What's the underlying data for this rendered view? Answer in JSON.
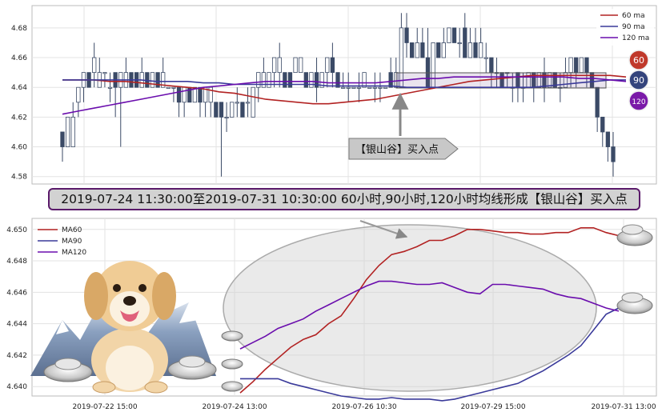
{
  "banner_text": "2019-07-24 11:30:00至2019-07-31 10:30:00 60小时,90小时,120小时均线形成【银山谷】买入点",
  "callout_text": "【银山谷】买入点",
  "badges": [
    {
      "label": "60",
      "color": "#c0392b"
    },
    {
      "label": "90",
      "color": "#34447c"
    },
    {
      "label": "120",
      "color": "#7a1aa8"
    }
  ],
  "colors": {
    "ma60": "#b22222",
    "ma90": "#3a3a9a",
    "ma120": "#6a0dad",
    "candle": "#3b4a66",
    "grid": "#dddddd"
  },
  "chart_data": [
    {
      "type": "candlestick",
      "legend": [
        {
          "label": "60 ma",
          "color": "#b22222"
        },
        {
          "label": "90 ma",
          "color": "#3a3a9a"
        },
        {
          "label": "120 ma",
          "color": "#6a0dad"
        }
      ],
      "yticks": [
        4.58,
        4.6,
        4.62,
        4.64,
        4.66,
        4.68
      ],
      "ylim": [
        4.575,
        4.695
      ],
      "candles": [
        [
          4.61,
          4.6,
          4.59,
          4.61
        ],
        [
          4.6,
          4.62,
          4.6,
          4.62
        ],
        [
          4.6,
          4.62,
          4.6,
          4.63
        ],
        [
          4.63,
          4.64,
          4.62,
          4.64
        ],
        [
          4.64,
          4.65,
          4.63,
          4.65
        ],
        [
          4.65,
          4.64,
          4.64,
          4.65
        ],
        [
          4.65,
          4.66,
          4.64,
          4.67
        ],
        [
          4.64,
          4.65,
          4.64,
          4.66
        ],
        [
          4.65,
          4.65,
          4.64,
          4.65
        ],
        [
          4.64,
          4.64,
          4.63,
          4.65
        ],
        [
          4.65,
          4.64,
          4.62,
          4.65
        ],
        [
          4.64,
          4.65,
          4.6,
          4.65
        ],
        [
          4.64,
          4.65,
          4.64,
          4.66
        ],
        [
          4.65,
          4.64,
          4.64,
          4.65
        ],
        [
          4.65,
          4.64,
          4.64,
          4.65
        ],
        [
          4.64,
          4.65,
          4.64,
          4.66
        ],
        [
          4.65,
          4.64,
          4.64,
          4.65
        ],
        [
          4.64,
          4.65,
          4.64,
          4.65
        ],
        [
          4.65,
          4.64,
          4.64,
          4.65
        ],
        [
          4.64,
          4.65,
          4.64,
          4.66
        ],
        [
          4.64,
          4.64,
          4.64,
          4.64
        ],
        [
          4.64,
          4.64,
          4.63,
          4.64
        ],
        [
          4.64,
          4.63,
          4.62,
          4.64
        ],
        [
          4.63,
          4.64,
          4.62,
          4.64
        ],
        [
          4.64,
          4.63,
          4.63,
          4.64
        ],
        [
          4.63,
          4.64,
          4.63,
          4.64
        ],
        [
          4.64,
          4.63,
          4.62,
          4.64
        ],
        [
          4.63,
          4.64,
          4.62,
          4.64
        ],
        [
          4.63,
          4.64,
          4.62,
          4.64
        ],
        [
          4.63,
          4.62,
          4.62,
          4.63
        ],
        [
          4.63,
          4.62,
          4.58,
          4.63
        ],
        [
          4.62,
          4.62,
          4.61,
          4.63
        ],
        [
          4.62,
          4.63,
          4.62,
          4.63
        ],
        [
          4.63,
          4.63,
          4.62,
          4.64
        ],
        [
          4.63,
          4.62,
          4.62,
          4.63
        ],
        [
          4.63,
          4.63,
          4.62,
          4.64
        ],
        [
          4.62,
          4.64,
          4.62,
          4.64
        ],
        [
          4.64,
          4.65,
          4.63,
          4.65
        ],
        [
          4.64,
          4.65,
          4.64,
          4.66
        ],
        [
          4.64,
          4.65,
          4.64,
          4.65
        ],
        [
          4.65,
          4.66,
          4.64,
          4.66
        ],
        [
          4.65,
          4.66,
          4.64,
          4.67
        ],
        [
          4.65,
          4.64,
          4.64,
          4.65
        ],
        [
          4.65,
          4.64,
          4.64,
          4.65
        ],
        [
          4.65,
          4.66,
          4.65,
          4.66
        ],
        [
          4.65,
          4.66,
          4.65,
          4.66
        ],
        [
          4.65,
          4.64,
          4.64,
          4.65
        ],
        [
          4.64,
          4.65,
          4.64,
          4.65
        ],
        [
          4.65,
          4.64,
          4.63,
          4.66
        ],
        [
          4.64,
          4.65,
          4.64,
          4.65
        ],
        [
          4.65,
          4.66,
          4.64,
          4.66
        ],
        [
          4.66,
          4.65,
          4.64,
          4.67
        ],
        [
          4.65,
          4.64,
          4.64,
          4.65
        ],
        [
          4.64,
          4.64,
          4.64,
          4.65
        ],
        [
          4.64,
          4.64,
          4.63,
          4.65
        ],
        [
          4.64,
          4.64,
          4.64,
          4.64
        ],
        [
          4.64,
          4.64,
          4.63,
          4.65
        ],
        [
          4.64,
          4.65,
          4.64,
          4.65
        ],
        [
          4.64,
          4.64,
          4.64,
          4.64
        ],
        [
          4.64,
          4.64,
          4.63,
          4.65
        ],
        [
          4.64,
          4.64,
          4.63,
          4.65
        ],
        [
          4.64,
          4.64,
          4.64,
          4.64
        ],
        [
          4.65,
          4.64,
          4.64,
          4.66
        ],
        [
          4.64,
          4.65,
          4.64,
          4.66
        ],
        [
          4.64,
          4.68,
          4.64,
          4.69
        ],
        [
          4.68,
          4.67,
          4.66,
          4.69
        ],
        [
          4.67,
          4.66,
          4.66,
          4.67
        ],
        [
          4.66,
          4.67,
          4.66,
          4.68
        ],
        [
          4.67,
          4.66,
          4.66,
          4.68
        ],
        [
          4.66,
          4.64,
          4.64,
          4.68
        ],
        [
          4.64,
          4.67,
          4.64,
          4.67
        ],
        [
          4.67,
          4.66,
          4.66,
          4.67
        ],
        [
          4.66,
          4.67,
          4.66,
          4.68
        ],
        [
          4.67,
          4.68,
          4.67,
          4.68
        ],
        [
          4.68,
          4.67,
          4.67,
          4.68
        ],
        [
          4.67,
          4.67,
          4.66,
          4.68
        ],
        [
          4.68,
          4.66,
          4.66,
          4.69
        ],
        [
          4.66,
          4.67,
          4.66,
          4.68
        ],
        [
          4.67,
          4.66,
          4.66,
          4.68
        ],
        [
          4.66,
          4.67,
          4.66,
          4.68
        ],
        [
          4.66,
          4.66,
          4.65,
          4.67
        ],
        [
          4.66,
          4.65,
          4.64,
          4.66
        ],
        [
          4.65,
          4.65,
          4.64,
          4.66
        ],
        [
          4.65,
          4.64,
          4.64,
          4.65
        ],
        [
          4.65,
          4.65,
          4.64,
          4.65
        ],
        [
          4.64,
          4.64,
          4.63,
          4.65
        ],
        [
          4.65,
          4.64,
          4.63,
          4.65
        ],
        [
          4.64,
          4.64,
          4.63,
          4.65
        ],
        [
          4.64,
          4.65,
          4.64,
          4.65
        ],
        [
          4.65,
          4.64,
          4.63,
          4.65
        ],
        [
          4.64,
          4.65,
          4.64,
          4.65
        ],
        [
          4.65,
          4.64,
          4.63,
          4.66
        ],
        [
          4.64,
          4.65,
          4.64,
          4.65
        ],
        [
          4.65,
          4.64,
          4.64,
          4.65
        ],
        [
          4.64,
          4.64,
          4.63,
          4.65
        ],
        [
          4.64,
          4.65,
          4.64,
          4.66
        ],
        [
          4.65,
          4.66,
          4.64,
          4.66
        ],
        [
          4.66,
          4.65,
          4.64,
          4.66
        ],
        [
          4.65,
          4.66,
          4.65,
          4.66
        ],
        [
          4.66,
          4.65,
          4.64,
          4.66
        ],
        [
          4.65,
          4.64,
          4.64,
          4.65
        ],
        [
          4.64,
          4.62,
          4.61,
          4.64
        ],
        [
          4.62,
          4.61,
          4.6,
          4.62
        ],
        [
          4.61,
          4.6,
          4.59,
          4.61
        ],
        [
          4.6,
          4.59,
          4.58,
          4.61
        ]
      ],
      "ma60": [
        4.645,
        4.645,
        4.645,
        4.644,
        4.644,
        4.643,
        4.642,
        4.641,
        4.64,
        4.639,
        4.637,
        4.636,
        4.634,
        4.632,
        4.631,
        4.63,
        4.629,
        4.629,
        4.63,
        4.631,
        4.632,
        4.634,
        4.636,
        4.638,
        4.64,
        4.642,
        4.644,
        4.645,
        4.646,
        4.647,
        4.648,
        4.648,
        4.648,
        4.648,
        4.648,
        4.648,
        4.647
      ],
      "ma90": [
        4.645,
        4.645,
        4.645,
        4.645,
        4.645,
        4.645,
        4.644,
        4.644,
        4.644,
        4.643,
        4.643,
        4.642,
        4.642,
        4.642,
        4.642,
        4.642,
        4.642,
        4.641,
        4.641,
        4.641,
        4.641,
        4.641,
        4.64,
        4.64,
        4.64,
        4.64,
        4.64,
        4.64,
        4.64,
        4.64,
        4.64,
        4.641,
        4.642,
        4.643,
        4.644,
        4.645,
        4.645
      ],
      "ma120": [
        4.622,
        4.624,
        4.626,
        4.628,
        4.63,
        4.632,
        4.634,
        4.636,
        4.638,
        4.64,
        4.641,
        4.642,
        4.643,
        4.644,
        4.644,
        4.644,
        4.644,
        4.643,
        4.643,
        4.643,
        4.643,
        4.644,
        4.645,
        4.646,
        4.646,
        4.647,
        4.647,
        4.647,
        4.647,
        4.647,
        4.647,
        4.647,
        4.647,
        4.646,
        4.646,
        4.645,
        4.644
      ]
    },
    {
      "type": "line",
      "legend": [
        {
          "label": "MA60",
          "color": "#b22222"
        },
        {
          "label": "MA90",
          "color": "#3a3a9a"
        },
        {
          "label": "MA120",
          "color": "#6a0dad"
        }
      ],
      "xticks": [
        "2019-07-22 15:00",
        "2019-07-24 13:00",
        "2019-07-26 10:30",
        "2019-07-29 15:00",
        "2019-07-31 13:00"
      ],
      "yticks": [
        4.64,
        4.642,
        4.644,
        4.646,
        4.648,
        4.65
      ],
      "ylim": [
        4.6394,
        4.6507
      ],
      "series": [
        {
          "name": "MA60",
          "values": [
            4.6396,
            4.6403,
            4.6411,
            4.6418,
            4.6425,
            4.643,
            4.6433,
            4.644,
            4.6445,
            4.6456,
            4.6468,
            4.6477,
            4.6484,
            4.6486,
            4.6489,
            4.6493,
            4.6493,
            4.6496,
            4.65,
            4.65,
            4.6499,
            4.6498,
            4.6498,
            4.6497,
            4.6497,
            4.6498,
            4.6498,
            4.6501,
            4.6501,
            4.6498,
            4.6496
          ]
        },
        {
          "name": "MA90",
          "values": [
            4.6405,
            4.6405,
            4.6405,
            4.6405,
            4.6402,
            4.64,
            4.6398,
            4.6396,
            4.6394,
            4.6393,
            4.6392,
            4.6392,
            4.6393,
            4.6392,
            4.6392,
            4.6392,
            4.6391,
            4.6392,
            4.6394,
            4.6396,
            4.6398,
            4.64,
            4.6402,
            4.6406,
            4.641,
            4.6415,
            4.642,
            4.6426,
            4.6436,
            4.6446,
            4.645
          ]
        },
        {
          "name": "MA120",
          "values": [
            4.6424,
            4.6428,
            4.6432,
            4.6437,
            4.644,
            4.6443,
            4.6448,
            4.6452,
            4.6456,
            4.646,
            4.6464,
            4.6467,
            4.6467,
            4.6466,
            4.6465,
            4.6465,
            4.6466,
            4.6463,
            4.646,
            4.6459,
            4.6465,
            4.6465,
            4.6464,
            4.6463,
            4.6462,
            4.6459,
            4.6457,
            4.6456,
            4.6453,
            4.645,
            4.6448
          ]
        }
      ]
    }
  ]
}
